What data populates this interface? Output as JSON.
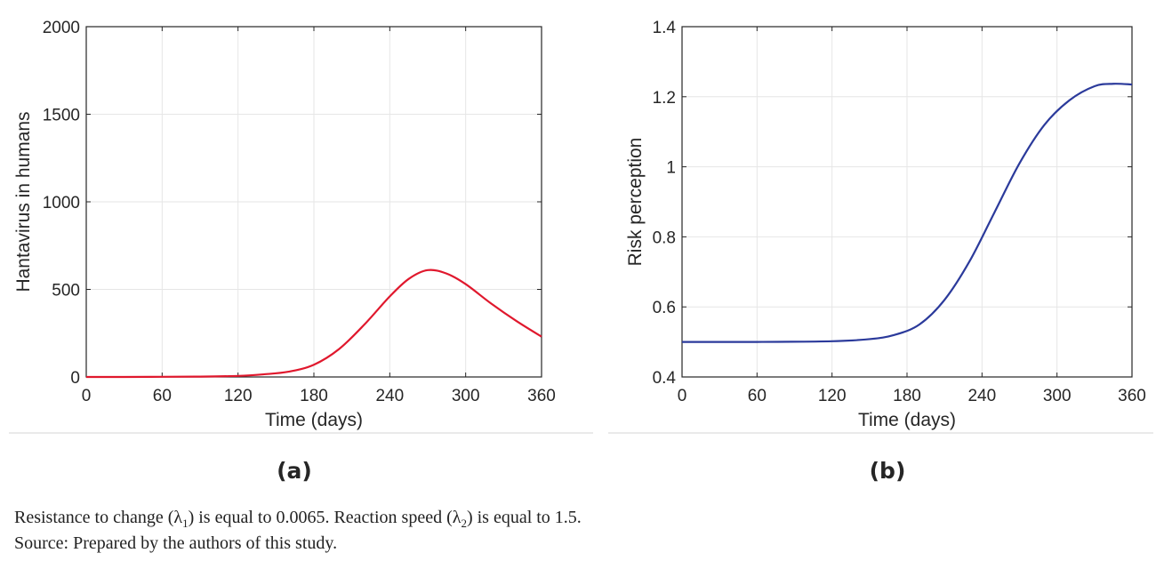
{
  "chart_data": [
    {
      "type": "line",
      "panel_label": "(a)",
      "xlabel": "Time (days)",
      "ylabel": "Hantavirus in humans",
      "xlim": [
        0,
        360
      ],
      "ylim": [
        0,
        2000
      ],
      "xticks": [
        "0",
        "60",
        "120",
        "180",
        "240",
        "300",
        "360"
      ],
      "yticks": [
        "0",
        "500",
        "1000",
        "1500",
        "2000"
      ],
      "grid": true,
      "color": "#e0182d",
      "series": [
        {
          "x": [
            0,
            30,
            60,
            90,
            120,
            140,
            160,
            180,
            200,
            220,
            240,
            255,
            270,
            285,
            300,
            320,
            340,
            360
          ],
          "y": [
            0,
            0,
            1,
            2,
            6,
            15,
            30,
            70,
            160,
            300,
            460,
            560,
            610,
            590,
            530,
            420,
            320,
            230
          ]
        }
      ]
    },
    {
      "type": "line",
      "panel_label": "(b)",
      "xlabel": "Time (days)",
      "ylabel": "Risk perception",
      "xlim": [
        0,
        360
      ],
      "ylim": [
        0.4,
        1.4
      ],
      "xticks": [
        "0",
        "60",
        "120",
        "180",
        "240",
        "300",
        "360"
      ],
      "yticks": [
        "0.4",
        "0.6",
        "0.8",
        "1",
        "1.2",
        "1.4"
      ],
      "grid": true,
      "color": "#2b3a9b",
      "series": [
        {
          "x": [
            0,
            60,
            120,
            150,
            170,
            190,
            210,
            230,
            250,
            270,
            290,
            310,
            330,
            345,
            360
          ],
          "y": [
            0.5,
            0.5,
            0.502,
            0.508,
            0.52,
            0.55,
            0.62,
            0.73,
            0.87,
            1.01,
            1.12,
            1.19,
            1.23,
            1.237,
            1.235
          ]
        }
      ]
    }
  ],
  "caption": {
    "line1_a": "Resistance to change (λ",
    "line1_sub1": "1",
    "line1_b": ") is equal to 0.0065. Reaction speed (λ",
    "line1_sub2": "2",
    "line1_c": ") is equal to 1.5.",
    "line2": "Source: Prepared by the authors of this study."
  }
}
